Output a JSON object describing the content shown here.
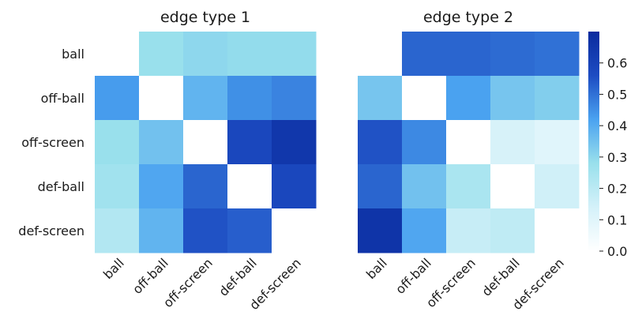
{
  "chart_data": [
    {
      "type": "heatmap",
      "title": "edge type 1",
      "x_labels": [
        "ball",
        "off-ball",
        "off-screen",
        "def-ball",
        "def-screen"
      ],
      "y_labels": [
        "ball",
        "off-ball",
        "off-screen",
        "def-ball",
        "def-screen"
      ],
      "values": [
        [
          0.0,
          0.28,
          0.3,
          0.29,
          0.29
        ],
        [
          0.43,
          0.0,
          0.38,
          0.45,
          0.47
        ],
        [
          0.28,
          0.35,
          0.0,
          0.58,
          0.65
        ],
        [
          0.26,
          0.41,
          0.52,
          0.0,
          0.58
        ],
        [
          0.22,
          0.38,
          0.55,
          0.53,
          0.0
        ]
      ]
    },
    {
      "type": "heatmap",
      "title": "edge type 2",
      "x_labels": [
        "ball",
        "off-ball",
        "off-screen",
        "def-ball",
        "def-screen"
      ],
      "y_labels": [
        "ball",
        "off-ball",
        "off-screen",
        "def-ball",
        "def-screen"
      ],
      "values": [
        [
          0.0,
          0.52,
          0.52,
          0.51,
          0.5
        ],
        [
          0.34,
          0.0,
          0.42,
          0.34,
          0.32
        ],
        [
          0.55,
          0.46,
          0.0,
          0.13,
          0.1
        ],
        [
          0.52,
          0.35,
          0.24,
          0.0,
          0.15
        ],
        [
          0.66,
          0.41,
          0.17,
          0.19,
          0.0
        ]
      ]
    }
  ],
  "colorbar": {
    "min": 0.0,
    "max": 0.7,
    "ticks": [
      "0.0",
      "0.1",
      "0.2",
      "0.3",
      "0.4",
      "0.5",
      "0.6"
    ],
    "colormap": [
      "#ffffff",
      "#d4f1f9",
      "#99e0ec",
      "#4aa2f0",
      "#1d4cc2",
      "#0a2b9e"
    ]
  }
}
